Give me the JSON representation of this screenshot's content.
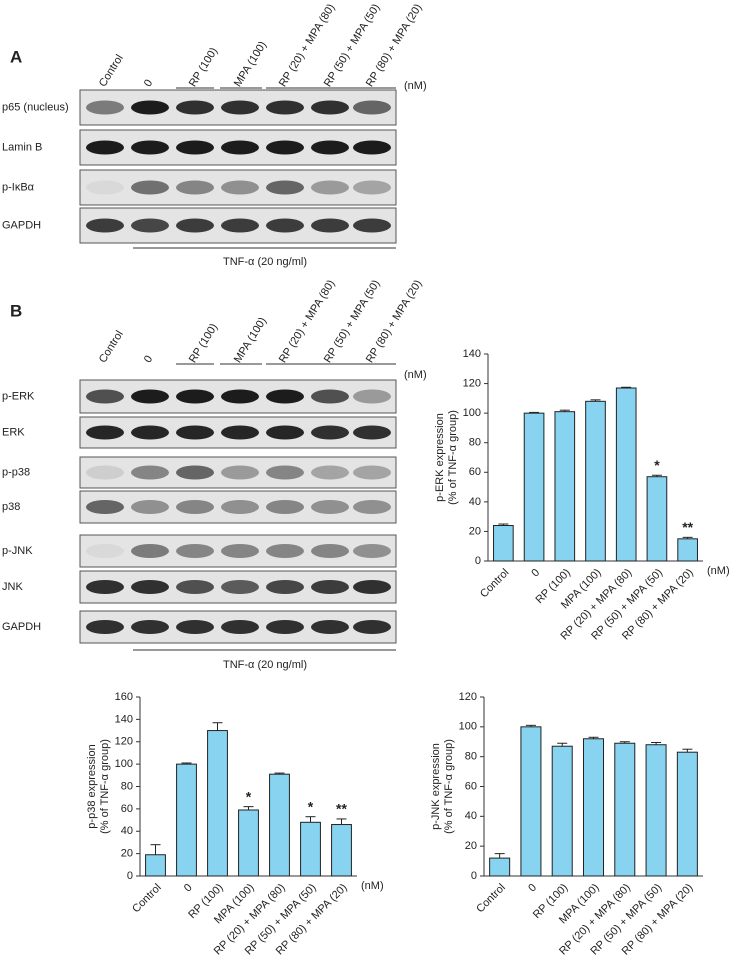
{
  "blots": [
    {
      "panel_label": "A",
      "lanes": [
        "Control",
        "0",
        "RP (100)",
        "MPA (100)",
        "RP (20) + MPA (80)",
        "RP (50) + MPA (50)",
        "RP (80) + MPA (20)"
      ],
      "unit": "(nM)",
      "rows": [
        "p65 (nucleus)",
        "Lamin B",
        "p-IκBα",
        "GAPDH"
      ],
      "treatment": "TNF-α (20 ng/ml)"
    },
    {
      "panel_label": "B",
      "lanes": [
        "Control",
        "0",
        "RP (100)",
        "MPA (100)",
        "RP (20) + MPA (80)",
        "RP (50) + MPA (50)",
        "RP (80) + MPA (20)"
      ],
      "unit": "(nM)",
      "rows": [
        "p-ERK",
        "ERK",
        "p-p38",
        "p38",
        "p-JNK",
        "JNK",
        "GAPDH"
      ],
      "treatment": "TNF-α (20 ng/ml)"
    }
  ],
  "chart_data": [
    {
      "type": "bar",
      "ylabel": [
        "p-ERK expression",
        "(% of TNF-α group)"
      ],
      "categories": [
        "Control",
        "0",
        "RP (100)",
        "MPA (100)",
        "RP (20) + MPA (80)",
        "RP (50) + MPA (50)",
        "RP (80) + MPA (20)"
      ],
      "values": [
        24,
        100,
        101,
        108,
        117,
        57,
        15
      ],
      "errors": [
        1,
        0.5,
        1,
        1,
        0.5,
        1,
        1
      ],
      "color": "#87d3f0",
      "ylim": [
        0,
        140
      ],
      "yticks": [
        0,
        20,
        40,
        60,
        80,
        100,
        120,
        140
      ],
      "unit": "(nM)",
      "annotations": [
        {
          "index": 5,
          "text": "*"
        },
        {
          "index": 6,
          "text": "**"
        }
      ]
    },
    {
      "type": "bar",
      "ylabel": [
        "p-p38 expression",
        "(% of TNF-α group)"
      ],
      "categories": [
        "Control",
        "0",
        "RP (100)",
        "MPA (100)",
        "RP (20) + MPA (80)",
        "RP (50) + MPA (50)",
        "RP (80) + MPA (20)"
      ],
      "values": [
        19,
        100,
        130,
        59,
        91,
        48,
        46
      ],
      "errors": [
        9,
        1,
        7,
        3,
        1,
        5,
        5
      ],
      "color": "#87d3f0",
      "ylim": [
        0,
        160
      ],
      "yticks": [
        0,
        20,
        40,
        60,
        80,
        100,
        120,
        140,
        160
      ],
      "unit": "(nM)",
      "annotations": [
        {
          "index": 3,
          "text": "*"
        },
        {
          "index": 5,
          "text": "*"
        },
        {
          "index": 6,
          "text": "**"
        }
      ]
    },
    {
      "type": "bar",
      "ylabel": [
        "p-JNK expression",
        "(% of TNF-α group)"
      ],
      "categories": [
        "Control",
        "0",
        "RP (100)",
        "MPA (100)",
        "RP (20) + MPA (80)",
        "RP (50) + MPA (50)",
        "RP (80) + MPA (20)"
      ],
      "values": [
        12,
        100,
        87,
        92,
        89,
        88,
        83
      ],
      "errors": [
        3,
        1,
        2,
        1,
        1,
        1.5,
        2
      ],
      "color": "#87d3f0",
      "ylim": [
        0,
        120
      ],
      "yticks": [
        0,
        20,
        40,
        60,
        80,
        100,
        120
      ]
    }
  ]
}
